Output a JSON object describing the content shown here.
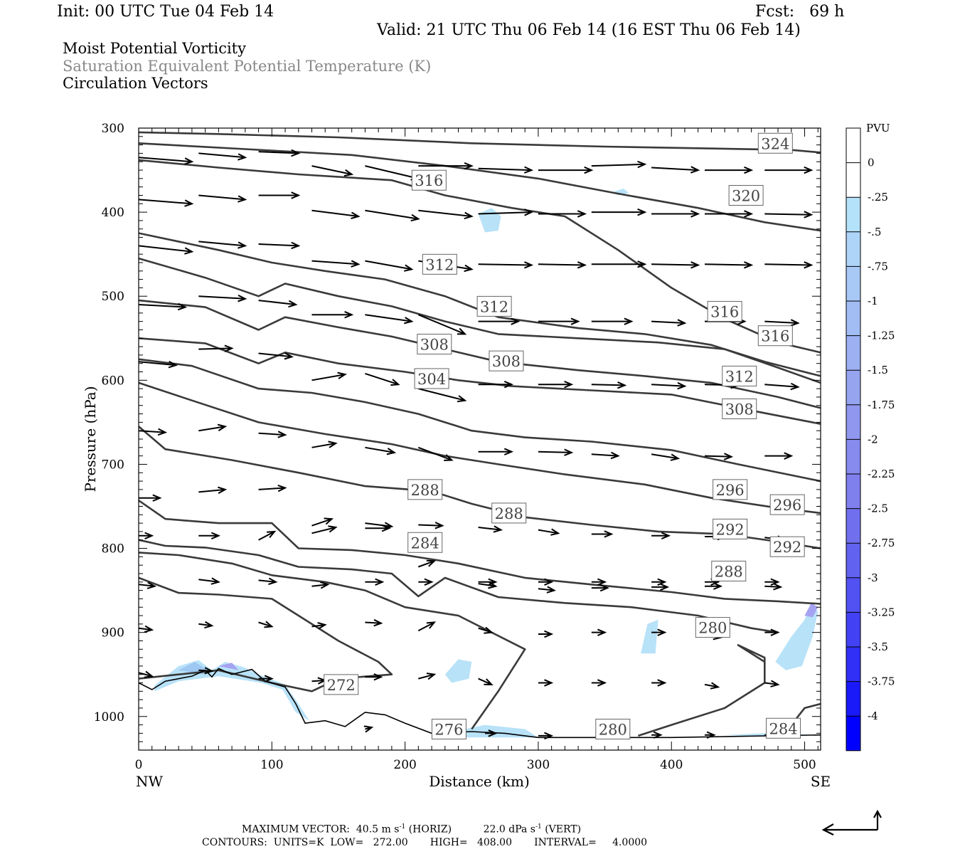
{
  "header": {
    "init": "Init: 00 UTC Tue 04 Feb 14",
    "fcst": "Fcst:   69 h",
    "valid": "Valid: 21 UTC Thu 06 Feb 14 (16 EST Thu 06 Feb 14)"
  },
  "titles": {
    "line1": "Moist Potential Vorticity",
    "line2": "Saturation Equivalent Potential Temperature (K)",
    "line3": "Circulation Vectors"
  },
  "footer": {
    "max_vector_label": "MAXIMUM VECTOR:",
    "horiz_value": "40.5 m s",
    "horiz_suffix": "(HORIZ)",
    "vert_value": "22.0 dPa s",
    "vert_suffix": "(VERT)",
    "exponent": "-1",
    "contours": "CONTOURS:  UNITS=K  LOW=   272.00       HIGH=   408.00       INTERVAL=     4.0000"
  },
  "colors": {
    "contour": "#3a3a3a",
    "shade_light": "#b8e2f8",
    "shade_mid": "#9ec8f2",
    "shade_violet": "#a6a2f2"
  },
  "chart_data": {
    "type": "cross-section",
    "xlabel": "Distance (km)",
    "ylabel": "Pressure (hPa)",
    "x_left_label": "NW",
    "x_right_label": "SE",
    "xlim": [
      0,
      512
    ],
    "ylim": [
      1040,
      300
    ],
    "x_ticks": [
      0,
      100,
      200,
      300,
      400,
      500
    ],
    "y_ticks": [
      300,
      400,
      500,
      600,
      700,
      800,
      900,
      1000
    ],
    "colorbar": {
      "title": "PVU",
      "labels": [
        "0",
        "-.25",
        "-.5",
        "-.75",
        "-1",
        "-1.25",
        "-1.5",
        "-1.75",
        "-2",
        "-2.25",
        "-2.5",
        "-2.75",
        "-3",
        "-3.25",
        "-3.5",
        "-3.75",
        "-4"
      ],
      "colors": [
        "#ffffff",
        "#ffffff",
        "#b4e2fa",
        "#aed4f8",
        "#a8c8f6",
        "#a2bcf4",
        "#9cb0f2",
        "#96a4f0",
        "#8f97ee",
        "#878bee",
        "#7f7fee",
        "#7070ee",
        "#6262f0",
        "#5252f2",
        "#4242f4",
        "#3030f6",
        "#1a1af8",
        "#0000ff"
      ]
    },
    "contour_labels": [
      {
        "text": "324",
        "x": 478,
        "p": 318
      },
      {
        "text": "320",
        "x": 456,
        "p": 380
      },
      {
        "text": "316",
        "x": 218,
        "p": 362
      },
      {
        "text": "316",
        "x": 440,
        "p": 518
      },
      {
        "text": "316",
        "x": 478,
        "p": 547
      },
      {
        "text": "312",
        "x": 226,
        "p": 462
      },
      {
        "text": "312",
        "x": 267,
        "p": 512
      },
      {
        "text": "312",
        "x": 451,
        "p": 595
      },
      {
        "text": "308",
        "x": 222,
        "p": 557
      },
      {
        "text": "308",
        "x": 276,
        "p": 577
      },
      {
        "text": "308",
        "x": 451,
        "p": 634
      },
      {
        "text": "304",
        "x": 220,
        "p": 598
      },
      {
        "text": "296",
        "x": 444,
        "p": 730
      },
      {
        "text": "296",
        "x": 487,
        "p": 748
      },
      {
        "text": "292",
        "x": 444,
        "p": 777
      },
      {
        "text": "292",
        "x": 487,
        "p": 798
      },
      {
        "text": "288",
        "x": 215,
        "p": 730
      },
      {
        "text": "288",
        "x": 278,
        "p": 758
      },
      {
        "text": "288",
        "x": 443,
        "p": 827
      },
      {
        "text": "284",
        "x": 215,
        "p": 793
      },
      {
        "text": "280",
        "x": 431,
        "p": 894
      },
      {
        "text": "280",
        "x": 356,
        "p": 1015
      },
      {
        "text": "284",
        "x": 484,
        "p": 1014
      },
      {
        "text": "276",
        "x": 233,
        "p": 1015
      },
      {
        "text": "272",
        "x": 152,
        "p": 962
      }
    ]
  }
}
